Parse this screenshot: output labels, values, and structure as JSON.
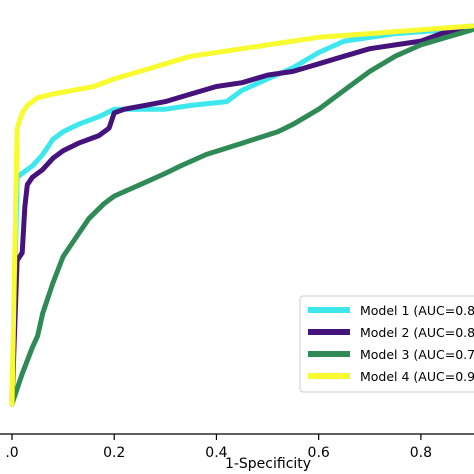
{
  "chart_data": {
    "type": "line",
    "title": "",
    "xlabel": "1-Specificity",
    "ylabel": "",
    "xlim": [
      0.0,
      0.9
    ],
    "ylim": [
      0.0,
      1.0
    ],
    "x_ticks": [
      0.0,
      0.2,
      0.4,
      0.6,
      0.8
    ],
    "x_tick_labels": [
      ".0",
      "0.2",
      "0.4",
      "0.6",
      "0.8"
    ],
    "grid": false,
    "legend_position": "bottom-right",
    "series": [
      {
        "name": "Model 1 (AUC=0.8",
        "color": "#3de7ee",
        "points": [
          [
            0.0,
            0.0
          ],
          [
            0.01,
            0.6
          ],
          [
            0.02,
            0.61
          ],
          [
            0.04,
            0.63
          ],
          [
            0.06,
            0.66
          ],
          [
            0.08,
            0.7
          ],
          [
            0.1,
            0.72
          ],
          [
            0.13,
            0.74
          ],
          [
            0.17,
            0.76
          ],
          [
            0.2,
            0.78
          ],
          [
            0.25,
            0.78
          ],
          [
            0.3,
            0.78
          ],
          [
            0.35,
            0.79
          ],
          [
            0.42,
            0.8
          ],
          [
            0.45,
            0.83
          ],
          [
            0.5,
            0.86
          ],
          [
            0.55,
            0.89
          ],
          [
            0.6,
            0.93
          ],
          [
            0.65,
            0.96
          ],
          [
            0.75,
            0.98
          ],
          [
            0.85,
            0.99
          ],
          [
            0.9,
            1.0
          ]
        ]
      },
      {
        "name": "Model 2 (AUC=0.8",
        "color": "#46137d",
        "points": [
          [
            0.0,
            0.0
          ],
          [
            0.01,
            0.38
          ],
          [
            0.02,
            0.4
          ],
          [
            0.025,
            0.52
          ],
          [
            0.03,
            0.58
          ],
          [
            0.04,
            0.6
          ],
          [
            0.06,
            0.62
          ],
          [
            0.08,
            0.65
          ],
          [
            0.1,
            0.67
          ],
          [
            0.13,
            0.69
          ],
          [
            0.17,
            0.71
          ],
          [
            0.19,
            0.73
          ],
          [
            0.2,
            0.77
          ],
          [
            0.22,
            0.78
          ],
          [
            0.26,
            0.79
          ],
          [
            0.3,
            0.8
          ],
          [
            0.35,
            0.82
          ],
          [
            0.4,
            0.84
          ],
          [
            0.45,
            0.85
          ],
          [
            0.5,
            0.87
          ],
          [
            0.55,
            0.88
          ],
          [
            0.6,
            0.9
          ],
          [
            0.65,
            0.92
          ],
          [
            0.7,
            0.94
          ],
          [
            0.75,
            0.95
          ],
          [
            0.8,
            0.96
          ],
          [
            0.84,
            0.98
          ],
          [
            0.9,
            1.0
          ]
        ]
      },
      {
        "name": "Model 3 (AUC=0.7",
        "color": "#2f8a56",
        "points": [
          [
            0.0,
            0.0
          ],
          [
            0.02,
            0.08
          ],
          [
            0.04,
            0.15
          ],
          [
            0.05,
            0.18
          ],
          [
            0.06,
            0.24
          ],
          [
            0.08,
            0.32
          ],
          [
            0.1,
            0.39
          ],
          [
            0.12,
            0.43
          ],
          [
            0.15,
            0.49
          ],
          [
            0.18,
            0.53
          ],
          [
            0.2,
            0.55
          ],
          [
            0.25,
            0.58
          ],
          [
            0.3,
            0.61
          ],
          [
            0.33,
            0.63
          ],
          [
            0.38,
            0.66
          ],
          [
            0.45,
            0.69
          ],
          [
            0.52,
            0.72
          ],
          [
            0.55,
            0.74
          ],
          [
            0.6,
            0.78
          ],
          [
            0.65,
            0.83
          ],
          [
            0.7,
            0.88
          ],
          [
            0.75,
            0.92
          ],
          [
            0.8,
            0.95
          ],
          [
            0.85,
            0.97
          ],
          [
            0.9,
            0.99
          ]
        ]
      },
      {
        "name": "Model 4 (AUC=0.9",
        "color": "#f8fb2f",
        "points": [
          [
            0.0,
            0.0
          ],
          [
            0.01,
            0.73
          ],
          [
            0.02,
            0.77
          ],
          [
            0.03,
            0.79
          ],
          [
            0.05,
            0.81
          ],
          [
            0.08,
            0.82
          ],
          [
            0.12,
            0.83
          ],
          [
            0.16,
            0.84
          ],
          [
            0.2,
            0.86
          ],
          [
            0.25,
            0.88
          ],
          [
            0.3,
            0.9
          ],
          [
            0.35,
            0.92
          ],
          [
            0.4,
            0.93
          ],
          [
            0.45,
            0.94
          ],
          [
            0.5,
            0.95
          ],
          [
            0.6,
            0.97
          ],
          [
            0.7,
            0.98
          ],
          [
            0.8,
            0.99
          ],
          [
            0.9,
            1.0
          ]
        ]
      }
    ]
  }
}
